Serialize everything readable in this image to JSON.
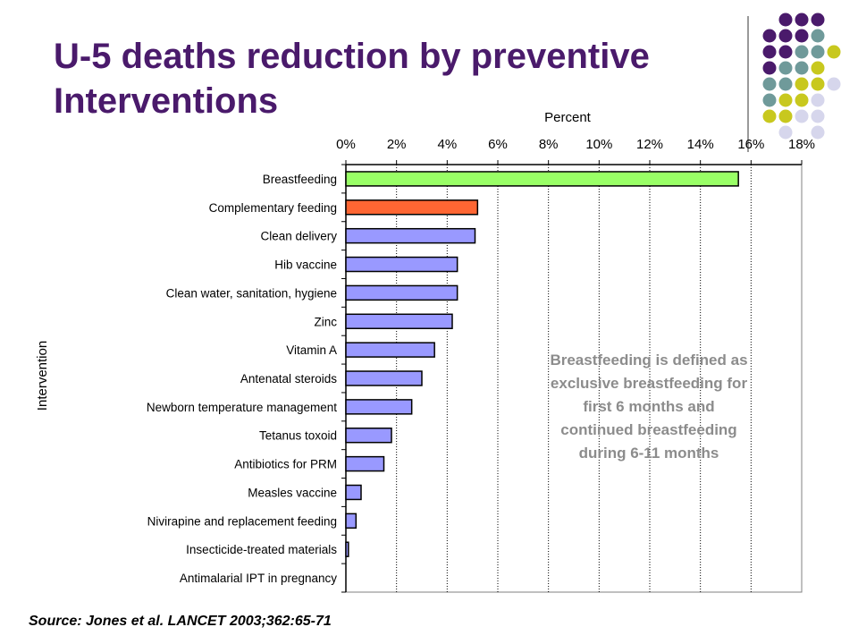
{
  "slide": {
    "title": "U-5 deaths reduction by preventive Interventions",
    "note": "Breastfeeding is defined as exclusive breastfeeding for first 6 months and continued breastfeeding during 6-11 months",
    "source": "Source: Jones et al. LANCET 2003;362:65-71"
  },
  "colors": {
    "title": "#4a1a6b",
    "dot_purple": "#4a1a6b",
    "dot_teal": "#6f9a9a",
    "dot_olive": "#c8c81e",
    "dot_lavender": "#d6d6ec"
  },
  "chart_data": {
    "type": "bar",
    "orientation": "horizontal",
    "xlabel": "Percent",
    "ylabel": "Intervention",
    "xlim": [
      0,
      18
    ],
    "xticks": [
      "0%",
      "2%",
      "4%",
      "6%",
      "8%",
      "10%",
      "12%",
      "14%",
      "16%",
      "18%"
    ],
    "grid": "vertical",
    "categories": [
      "Breastfeeding",
      "Complementary feeding",
      "Clean delivery",
      "Hib vaccine",
      "Clean water, sanitation, hygiene",
      "Zinc",
      "Vitamin A",
      "Antenatal steroids",
      "Newborn temperature management",
      "Tetanus toxoid",
      "Antibiotics for PRM",
      "Measles vaccine",
      "Nivirapine and replacement feeding",
      "Insecticide-treated materials",
      "Antimalarial IPT in pregnancy"
    ],
    "values": [
      15.5,
      5.2,
      5.1,
      4.4,
      4.4,
      4.2,
      3.5,
      3.0,
      2.6,
      1.8,
      1.5,
      0.6,
      0.4,
      0.1,
      0.0
    ],
    "bar_colors": [
      "#99ff66",
      "#ff6633",
      "#9999ff",
      "#9999ff",
      "#9999ff",
      "#9999ff",
      "#9999ff",
      "#9999ff",
      "#9999ff",
      "#9999ff",
      "#9999ff",
      "#9999ff",
      "#9999ff",
      "#9999ff",
      "#9999ff"
    ]
  }
}
